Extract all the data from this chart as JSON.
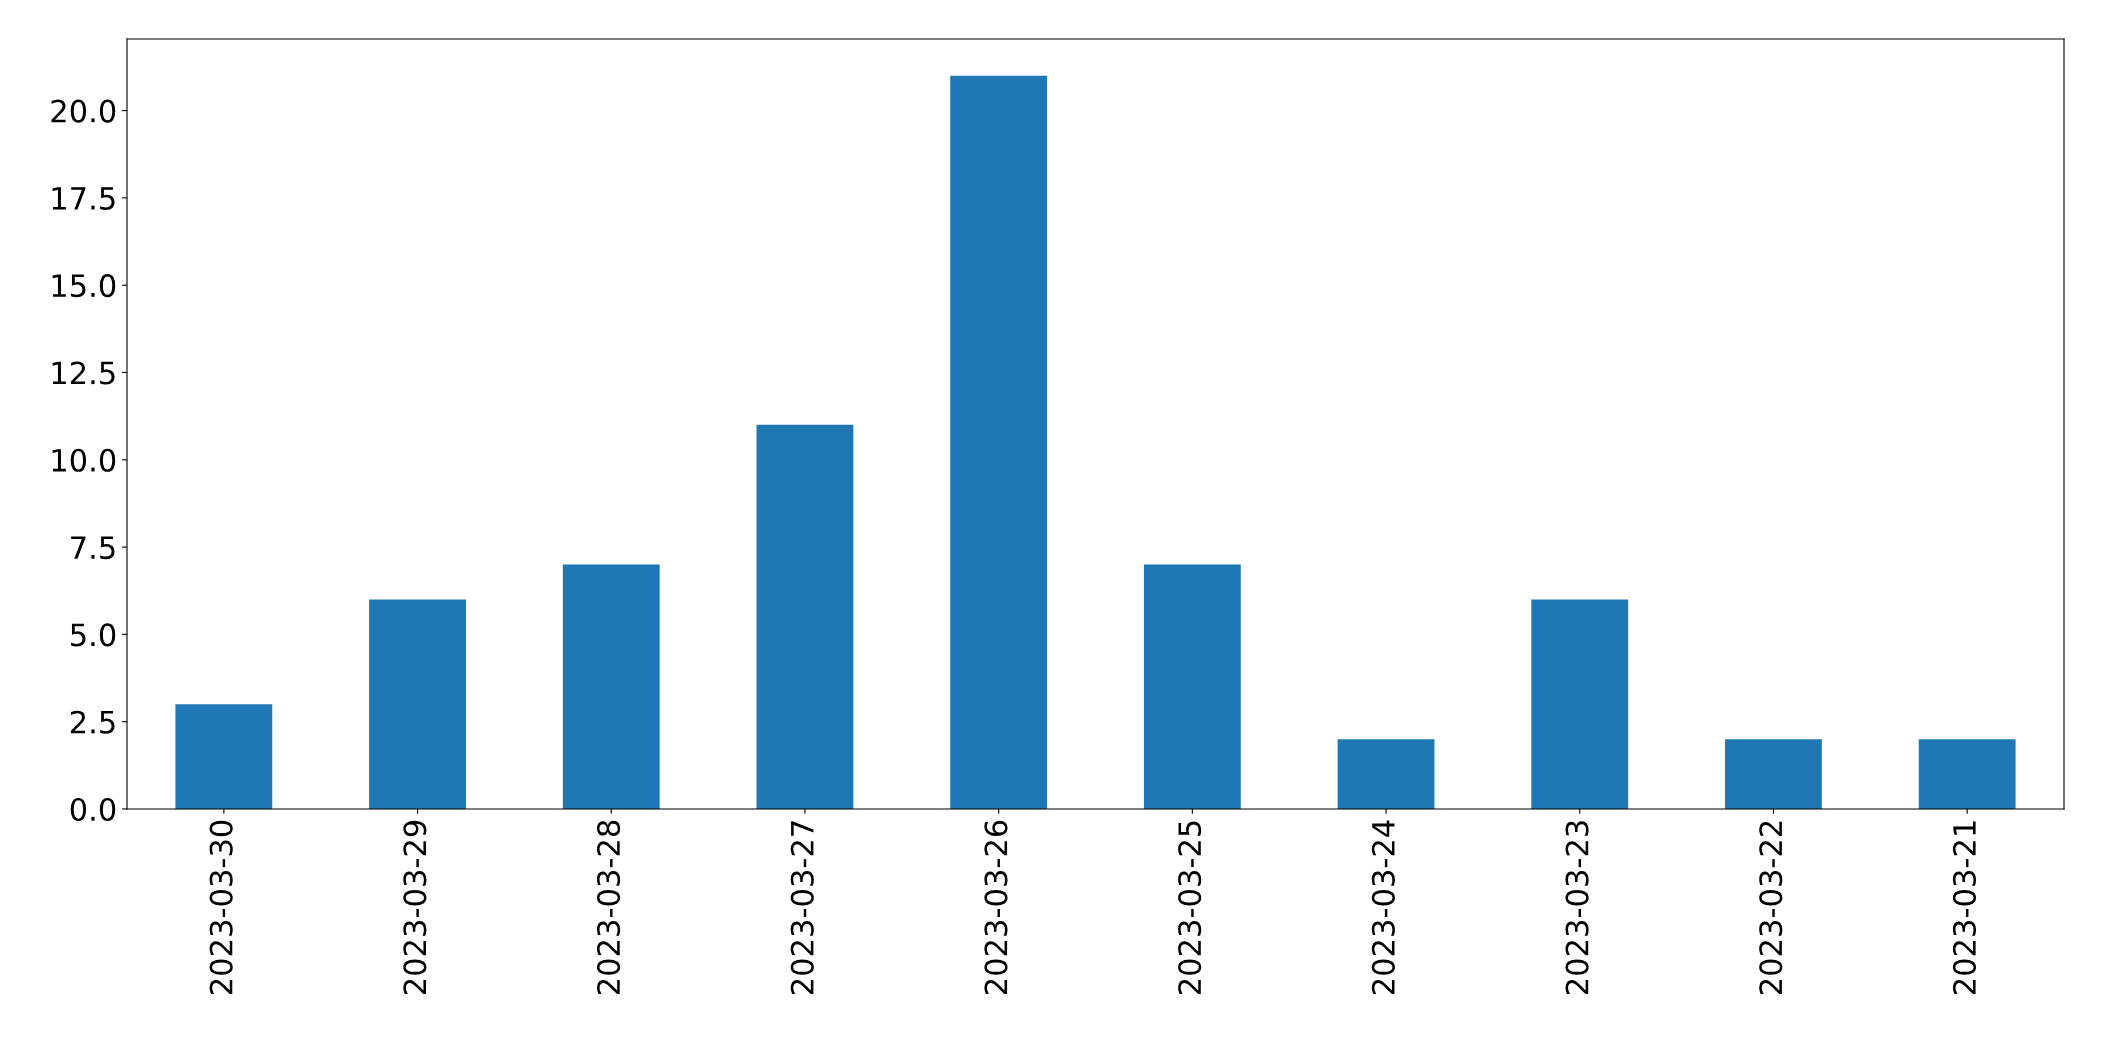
{
  "chart_data": {
    "type": "bar",
    "categories": [
      "2023-03-30",
      "2023-03-29",
      "2023-03-28",
      "2023-03-27",
      "2023-03-26",
      "2023-03-25",
      "2023-03-24",
      "2023-03-23",
      "2023-03-22",
      "2023-03-21"
    ],
    "values": [
      3,
      6,
      7,
      11,
      21,
      7,
      2,
      6,
      2,
      2
    ],
    "color": "#1f77b4",
    "ylim": [
      0,
      22.05
    ],
    "yticks": [
      {
        "value": 0,
        "label": "0.0"
      },
      {
        "value": 2.5,
        "label": "2.5"
      },
      {
        "value": 5,
        "label": "5.0"
      },
      {
        "value": 7.5,
        "label": "7.5"
      },
      {
        "value": 10,
        "label": "10.0"
      },
      {
        "value": 12.5,
        "label": "12.5"
      },
      {
        "value": 15,
        "label": "15.0"
      },
      {
        "value": 17.5,
        "label": "17.5"
      },
      {
        "value": 20,
        "label": "20.0"
      }
    ],
    "grid": false,
    "legend": false
  }
}
